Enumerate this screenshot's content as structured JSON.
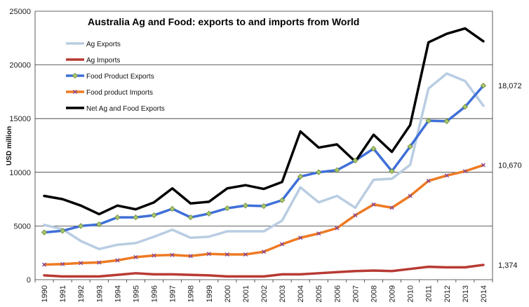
{
  "chart_data": {
    "type": "line",
    "title": "Australia Ag and Food: exports  to and imports from World",
    "xlabel": "",
    "ylabel": "USD million",
    "ylim": [
      0,
      25000
    ],
    "yticks": [
      "0",
      "5000",
      "10000",
      "15000",
      "20000",
      "25000"
    ],
    "grid": "horizontal",
    "legend_position": "top-left",
    "categories": [
      "1990",
      "1991",
      "1992",
      "1993",
      "1994",
      "1995",
      "1996",
      "1997",
      "1998",
      "1999",
      "2000",
      "2001",
      "2002",
      "2003",
      "2004",
      "2005",
      "2006",
      "2007",
      "2008",
      "2009",
      "2010",
      "2011",
      "2012",
      "2013",
      "2014"
    ],
    "series": [
      {
        "name": "Ag Exports",
        "color": "#b9cde2",
        "marker": "none",
        "values": [
          5100,
          4700,
          3600,
          2850,
          3250,
          3400,
          4000,
          4650,
          3900,
          4000,
          4500,
          4500,
          4500,
          5500,
          8600,
          7200,
          7800,
          6700,
          9300,
          9400,
          10700,
          17800,
          19200,
          18500,
          16200
        ]
      },
      {
        "name": "Ag Imports",
        "color": "#b83a34",
        "marker": "none",
        "values": [
          400,
          300,
          300,
          300,
          450,
          600,
          500,
          500,
          450,
          400,
          300,
          300,
          300,
          500,
          500,
          600,
          700,
          800,
          850,
          800,
          1000,
          1200,
          1150,
          1150,
          1374
        ]
      },
      {
        "name": "Food Product Exports",
        "color": "#3f6fd8",
        "marker": "diamond",
        "values": [
          4400,
          4550,
          5000,
          5150,
          5800,
          5800,
          6000,
          6600,
          5800,
          6150,
          6650,
          6900,
          6850,
          7400,
          9600,
          10000,
          10200,
          11100,
          12200,
          10100,
          12400,
          14800,
          14750,
          16100,
          18072
        ]
      },
      {
        "name": "Food product Imports",
        "color": "#ee7a22",
        "marker": "x",
        "values": [
          1400,
          1450,
          1550,
          1600,
          1800,
          2100,
          2250,
          2300,
          2200,
          2400,
          2350,
          2350,
          2600,
          3300,
          3900,
          4300,
          4800,
          6000,
          7000,
          6700,
          7800,
          9200,
          9700,
          10100,
          10670
        ]
      },
      {
        "name": "Net Ag and Food Exports",
        "color": "#000000",
        "marker": "none",
        "values": [
          7800,
          7500,
          6900,
          6100,
          6900,
          6550,
          7200,
          8500,
          7100,
          7250,
          8500,
          8800,
          8450,
          9100,
          13800,
          12300,
          12600,
          11000,
          13500,
          11900,
          14400,
          22100,
          22900,
          23400,
          22200
        ]
      }
    ],
    "annotations": [
      "18,072",
      "10,670",
      "1,374"
    ]
  }
}
